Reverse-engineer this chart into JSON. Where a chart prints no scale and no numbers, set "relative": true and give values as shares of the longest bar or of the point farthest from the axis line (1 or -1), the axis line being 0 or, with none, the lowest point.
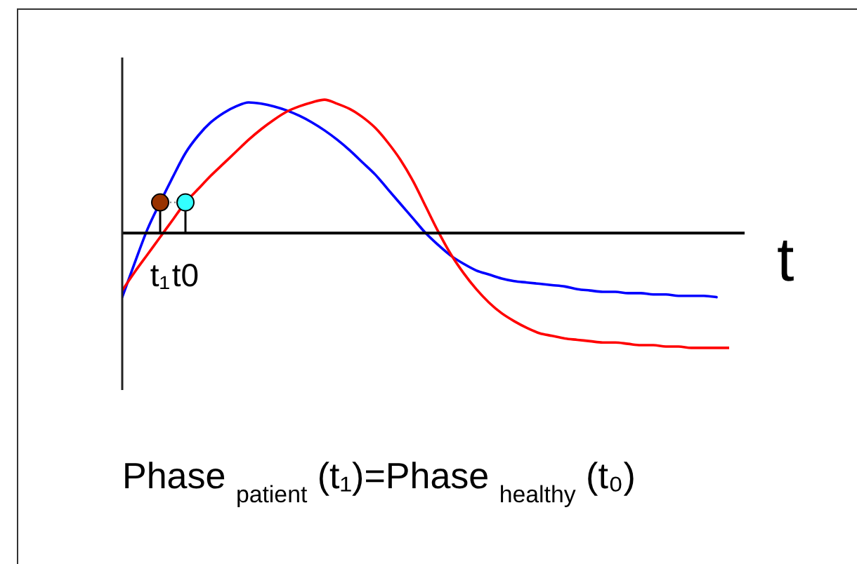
{
  "chart_data": {
    "type": "line",
    "relative": true,
    "xlabel": "t",
    "categories": [
      null,
      null,
      null,
      "t₁",
      null,
      "t0",
      null,
      null,
      null,
      null,
      null,
      null,
      null,
      null,
      null,
      null,
      null,
      null,
      null,
      null,
      null,
      null,
      null,
      null,
      null,
      null,
      null,
      null,
      null,
      null,
      null,
      null,
      null,
      null,
      null,
      null,
      null,
      null,
      null,
      null,
      null,
      null,
      null,
      null,
      null,
      null,
      null,
      null,
      null
    ],
    "series": [
      {
        "color": "#0000ff",
        "values": [
          -0.48,
          -0.22,
          0.03,
          0.23,
          0.42,
          0.6,
          0.73,
          0.83,
          0.9,
          0.95,
          0.98,
          0.97,
          0.95,
          0.92,
          0.88,
          0.83,
          0.77,
          0.7,
          0.62,
          0.53,
          0.44,
          0.33,
          0.22,
          0.11,
          0,
          -0.09,
          -0.17,
          -0.23,
          -0.28,
          -0.31,
          -0.34,
          -0.36,
          -0.37,
          -0.38,
          -0.39,
          -0.4,
          -0.42,
          -0.43,
          -0.44,
          -0.44,
          -0.45,
          -0.45,
          -0.46,
          -0.46,
          -0.47,
          -0.47,
          -0.47,
          -0.48,
          null
        ]
      },
      {
        "color": "#ff0000",
        "values": [
          -0.43,
          -0.29,
          -0.16,
          -0.03,
          0.1,
          0.23,
          0.33,
          0.43,
          0.52,
          0.61,
          0.7,
          0.78,
          0.85,
          0.91,
          0.95,
          0.98,
          1,
          0.97,
          0.93,
          0.87,
          0.79,
          0.68,
          0.55,
          0.39,
          0.2,
          0.01,
          -0.16,
          -0.3,
          -0.42,
          -0.52,
          -0.6,
          -0.66,
          -0.71,
          -0.75,
          -0.77,
          -0.79,
          -0.8,
          -0.81,
          -0.82,
          -0.82,
          -0.83,
          -0.84,
          -0.84,
          -0.85,
          -0.85,
          -0.86,
          -0.86,
          -0.86,
          -0.86
        ]
      },
      {
        "type": "lollipop",
        "color": "#993300",
        "values": [
          null,
          null,
          null,
          0.23,
          null,
          null,
          null,
          null,
          null,
          null,
          null,
          null,
          null,
          null,
          null,
          null,
          null,
          null,
          null,
          null,
          null,
          null,
          null,
          null,
          null,
          null,
          null,
          null,
          null,
          null,
          null,
          null,
          null,
          null,
          null,
          null,
          null,
          null,
          null,
          null,
          null,
          null,
          null,
          null,
          null,
          null,
          null,
          null,
          null
        ]
      },
      {
        "type": "lollipop",
        "color": "#33ffff",
        "values": [
          null,
          null,
          null,
          null,
          null,
          0.23,
          null,
          null,
          null,
          null,
          null,
          null,
          null,
          null,
          null,
          null,
          null,
          null,
          null,
          null,
          null,
          null,
          null,
          null,
          null,
          null,
          null,
          null,
          null,
          null,
          null,
          null,
          null,
          null,
          null,
          null,
          null,
          null,
          null,
          null,
          null,
          null,
          null,
          null,
          null,
          null,
          null,
          null,
          null
        ]
      }
    ],
    "annotations": [
      "Phase $_{patient}$ (t₁)=Phase $_{healthy}$ (t₀)"
    ]
  }
}
